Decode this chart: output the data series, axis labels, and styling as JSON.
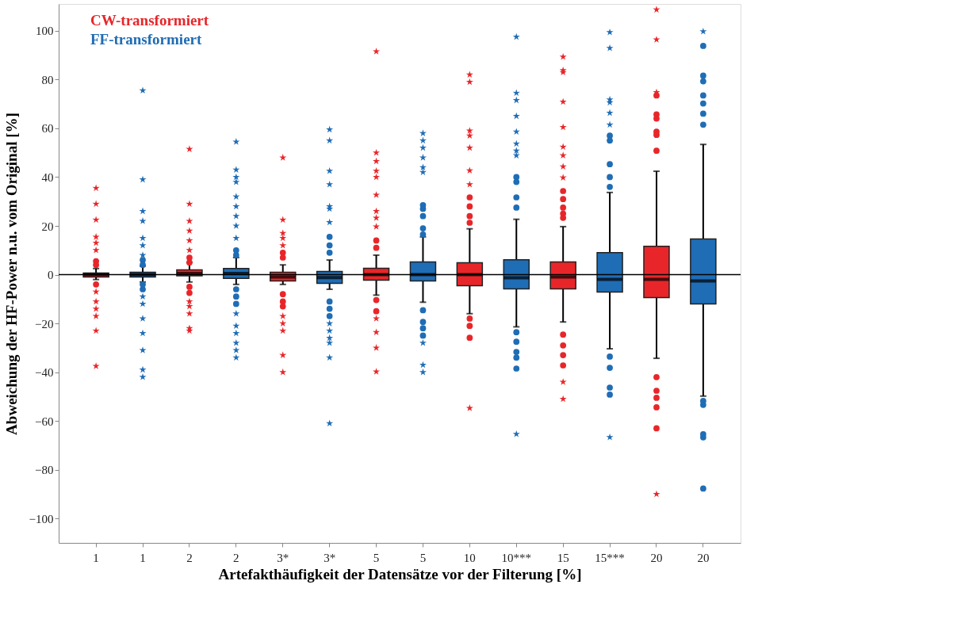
{
  "chart_data": {
    "type": "box",
    "xlabel": "Artefakthäufigkeit der Datensätze vor der Filterung [%]",
    "ylabel": "Abweichung der HF-Power n.u. vom Original [%]",
    "categories": [
      "1",
      "1",
      "2",
      "2",
      "3*",
      "3*",
      "5",
      "5",
      "10",
      "10***",
      "15",
      "15***",
      "20",
      "20"
    ],
    "ylim": [
      -110,
      111
    ],
    "yticks": [
      -100,
      -80,
      -60,
      -40,
      -20,
      0,
      20,
      40,
      60,
      80,
      100
    ],
    "grid": false,
    "legend": "top left",
    "ref_lines": [
      {
        "axis": "y",
        "value": 0,
        "color": "#000000"
      }
    ],
    "series": [
      {
        "name": "CW-transformiert",
        "color": "#e8262a",
        "boxes": [
          {
            "low": -2,
            "q1": -1,
            "median": 0,
            "q3": 0.7,
            "high": 2.5,
            "outliers": [
              35.5,
              29,
              22.5,
              15.5,
              13,
              10,
              5.5,
              4,
              -4,
              -7,
              -11,
              -14,
              -17,
              -23,
              -37.5
            ]
          },
          null,
          {
            "low": -3,
            "q1": -0.5,
            "median": 0.5,
            "q3": 2,
            "high": 5,
            "outliers": [
              51.5,
              29,
              22,
              18,
              14,
              10,
              7,
              5,
              -5,
              -7.5,
              -11,
              -13,
              -16,
              -22,
              -23
            ]
          },
          null,
          {
            "low": -4,
            "q1": -2.6,
            "median": -1,
            "q3": 1,
            "high": 4,
            "outliers": [
              48,
              22.5,
              17,
              15,
              12,
              9,
              7,
              -8,
              -11,
              -13,
              -17,
              -20,
              -23,
              -33,
              -40
            ]
          },
          null,
          {
            "low": -8.4,
            "q1": -2.3,
            "median": 0,
            "q3": 2.6,
            "high": 8,
            "outliers": [
              91.5,
              50,
              46.5,
              42.5,
              40,
              32.7,
              26,
              23.3,
              19.7,
              14,
              11,
              -10.4,
              -15,
              -18,
              -23.6,
              -30,
              -39.8
            ]
          },
          null,
          {
            "low": -16,
            "q1": -4.5,
            "median": 0,
            "q3": 4.9,
            "high": 18.8,
            "outliers": [
              82,
              79,
              59,
              57,
              52,
              42.7,
              37,
              31.7,
              28,
              24,
              21.3,
              -18,
              -21,
              -25.9,
              -54.7
            ]
          },
          null,
          {
            "low": -19.4,
            "q1": -5.8,
            "median": -1,
            "q3": 5.2,
            "high": 19.7,
            "outliers": [
              89.3,
              83.8,
              83,
              70.9,
              60.5,
              52.4,
              48.9,
              44.3,
              39.8,
              34.3,
              31,
              27.5,
              25,
              23.3,
              -24.6,
              -29,
              -33,
              -37.2,
              -44,
              -51
            ]
          },
          null,
          {
            "low": -34.3,
            "q1": -9.4,
            "median": -1.9,
            "q3": 11.6,
            "high": 42.4,
            "outliers": [
              108.7,
              96.4,
              74.8,
              73.5,
              65.7,
              64,
              58.6,
              57.3,
              50.8,
              -42,
              -47.6,
              -50.5,
              -54.4,
              -63,
              -90
            ]
          },
          null
        ]
      },
      {
        "name": "FF-transformiert",
        "color": "#1f6db5",
        "boxes": [
          null,
          {
            "low": -3,
            "q1": -1,
            "median": 0,
            "q3": 1,
            "high": 3.5,
            "outliers": [
              75.5,
              39,
              26,
              22,
              15,
              12,
              8,
              6,
              4,
              -4,
              -6,
              -9,
              -12,
              -18,
              -24,
              -31,
              -39,
              -42
            ]
          },
          null,
          {
            "low": -4,
            "q1": -1.5,
            "median": 0.5,
            "q3": 2.5,
            "high": 7,
            "outliers": [
              54.5,
              43,
              40,
              38,
              32,
              28,
              24,
              20,
              15,
              10,
              8,
              -6,
              -9,
              -12,
              -16,
              -21,
              -24,
              -28,
              -31,
              -34
            ]
          },
          null,
          {
            "low": -6,
            "q1": -3.6,
            "median": -1.2,
            "q3": 1.3,
            "high": 6,
            "outliers": [
              59.5,
              55,
              42.5,
              37,
              28,
              27,
              21.5,
              15.5,
              12,
              9,
              -11,
              -14,
              -17,
              -20,
              -23,
              -26,
              -28,
              -34,
              -61
            ]
          },
          null,
          {
            "low": -11.3,
            "q1": -2.6,
            "median": 0,
            "q3": 5.2,
            "high": 15.5,
            "outliers": [
              58,
              55,
              52,
              48,
              44,
              42,
              28.5,
              27,
              24,
              19,
              16.5,
              -14.6,
              -19.4,
              -22,
              -25,
              -28,
              -37,
              -40
            ]
          },
          null,
          {
            "low": -21.4,
            "q1": -5.8,
            "median": -1.3,
            "q3": 6.1,
            "high": 22.7,
            "outliers": [
              97.5,
              74.5,
              71.5,
              65,
              58.6,
              53.7,
              50.8,
              48.9,
              40,
              38,
              31.7,
              27.5,
              -23.6,
              -27.5,
              -31.7,
              -34,
              -38.5,
              -65.4
            ]
          },
          null,
          {
            "low": -30.4,
            "q1": -7.1,
            "median": -1.9,
            "q3": 9,
            "high": 33.7,
            "outliers": [
              99.4,
              92.9,
              71.8,
              70.6,
              66.3,
              61.5,
              57,
              55,
              45.3,
              40,
              36,
              -33.6,
              -38.2,
              -46.3,
              -49.2,
              -66.7
            ]
          },
          null,
          {
            "low": -49.8,
            "q1": -12,
            "median": -2.6,
            "q3": 14.6,
            "high": 53.4,
            "outliers": [
              99.7,
              93.8,
              81.6,
              79.3,
              73.5,
              70.2,
              66,
              61.5,
              -51.8,
              -53.4,
              -65.4,
              -66.7,
              -87.7
            ]
          }
        ]
      }
    ]
  }
}
